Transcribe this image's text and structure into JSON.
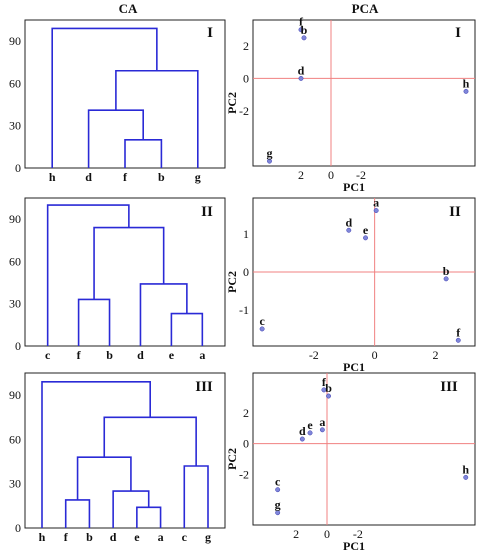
{
  "headers": {
    "ca": "CA",
    "pca": "PCA"
  },
  "colors": {
    "dendrogram": "#2a2ad6",
    "axis_line": "#f08080",
    "point": "#7f86d9",
    "frame": "#222222"
  },
  "chart_data": [
    {
      "type": "dendrogram",
      "method": "CA",
      "panel": "I",
      "ylim": [
        0,
        105
      ],
      "yticks": [
        0,
        30,
        60,
        90
      ],
      "leaves": [
        "h",
        "d",
        "f",
        "b",
        "g"
      ],
      "merges": [
        {
          "a": "f",
          "b": "b",
          "h": 20
        },
        {
          "a": "d",
          "b": "fb",
          "h": 41
        },
        {
          "a": "dfb",
          "b": "g",
          "h": 69
        },
        {
          "a": "h",
          "b": "dfbg",
          "h": 99
        }
      ]
    },
    {
      "type": "scatter",
      "method": "PCA",
      "panel": "I",
      "xlabel": "PC1",
      "ylabel": "PC2",
      "xlim": [
        5.2,
        -9.6
      ],
      "ylim": [
        -5.4,
        3.6
      ],
      "xticks": [
        2,
        0,
        -2
      ],
      "yticks": [
        2,
        0,
        -2
      ],
      "points": [
        {
          "label": "f",
          "x": 2.0,
          "y": 3.0
        },
        {
          "label": "b",
          "x": 1.8,
          "y": 2.5
        },
        {
          "label": "d",
          "x": 2.0,
          "y": 0.0
        },
        {
          "label": "h",
          "x": -9.0,
          "y": -0.8
        },
        {
          "label": "g",
          "x": 4.1,
          "y": -5.1
        }
      ]
    },
    {
      "type": "dendrogram",
      "method": "CA",
      "panel": "II",
      "ylim": [
        0,
        105
      ],
      "yticks": [
        0,
        30,
        60,
        90
      ],
      "leaves": [
        "c",
        "f",
        "b",
        "d",
        "e",
        "a"
      ],
      "merges": [
        {
          "a": "e",
          "b": "a",
          "h": 23
        },
        {
          "a": "f",
          "b": "b",
          "h": 33
        },
        {
          "a": "d",
          "b": "ea",
          "h": 44
        },
        {
          "a": "fb",
          "b": "dea",
          "h": 84
        },
        {
          "a": "c",
          "b": "fbdea",
          "h": 100
        }
      ]
    },
    {
      "type": "scatter",
      "method": "PCA",
      "panel": "II",
      "xlabel": "PC1",
      "ylabel": "PC2",
      "xlim": [
        -4.0,
        3.3
      ],
      "ylim": [
        -1.95,
        1.95
      ],
      "xticks": [
        -2,
        0,
        2
      ],
      "yticks": [
        1,
        0,
        -1
      ],
      "points": [
        {
          "label": "a",
          "x": 0.05,
          "y": 1.62
        },
        {
          "label": "d",
          "x": -0.85,
          "y": 1.1
        },
        {
          "label": "e",
          "x": -0.3,
          "y": 0.9
        },
        {
          "label": "b",
          "x": 2.35,
          "y": -0.18
        },
        {
          "label": "c",
          "x": -3.7,
          "y": -1.5
        },
        {
          "label": "f",
          "x": 2.75,
          "y": -1.8
        }
      ]
    },
    {
      "type": "dendrogram",
      "method": "CA",
      "panel": "III",
      "ylim": [
        0,
        105
      ],
      "yticks": [
        0,
        30,
        60,
        90
      ],
      "leaves": [
        "h",
        "f",
        "b",
        "d",
        "e",
        "a",
        "c",
        "g"
      ],
      "merges": [
        {
          "a": "e",
          "b": "a",
          "h": 14
        },
        {
          "a": "f",
          "b": "b",
          "h": 19
        },
        {
          "a": "d",
          "b": "ea",
          "h": 25
        },
        {
          "a": "c",
          "b": "g",
          "h": 42
        },
        {
          "a": "fb",
          "b": "dea",
          "h": 48
        },
        {
          "a": "fbdea",
          "b": "cg",
          "h": 75
        },
        {
          "a": "h",
          "b": "fbdeacg",
          "h": 99
        }
      ]
    },
    {
      "type": "scatter",
      "method": "PCA",
      "panel": "III",
      "xlabel": "PC1",
      "ylabel": "PC2",
      "xlim": [
        4.8,
        -9.6
      ],
      "ylim": [
        -5.3,
        4.6
      ],
      "xticks": [
        2,
        0,
        -2
      ],
      "yticks": [
        2,
        0,
        -2
      ],
      "points": [
        {
          "label": "f",
          "x": 0.2,
          "y": 3.5
        },
        {
          "label": "b",
          "x": -0.1,
          "y": 3.1
        },
        {
          "label": "e",
          "x": 1.1,
          "y": 0.7
        },
        {
          "label": "a",
          "x": 0.3,
          "y": 0.9
        },
        {
          "label": "d",
          "x": 1.6,
          "y": 0.3
        },
        {
          "label": "c",
          "x": 3.2,
          "y": -3.0
        },
        {
          "label": "g",
          "x": 3.2,
          "y": -4.5
        },
        {
          "label": "h",
          "x": -9.0,
          "y": -2.2
        }
      ]
    }
  ],
  "panel_labels": [
    "I",
    "I",
    "II",
    "II",
    "III",
    "III"
  ]
}
